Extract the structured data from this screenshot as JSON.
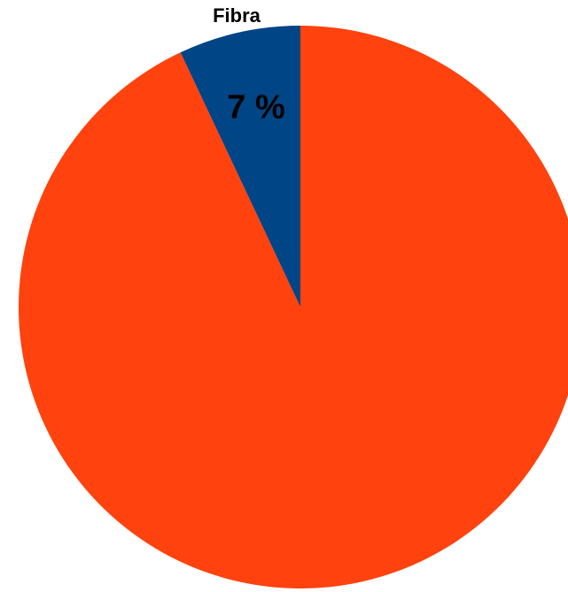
{
  "chart_data": {
    "type": "pie",
    "slices": [
      {
        "label": "Fibra",
        "value": 7,
        "display": "7 %",
        "color": "#004586"
      },
      {
        "label": "",
        "value": 93,
        "display": "",
        "color": "#ff420e"
      }
    ],
    "legend": "none",
    "start_angle": "top",
    "direction": "counterclockwise"
  }
}
